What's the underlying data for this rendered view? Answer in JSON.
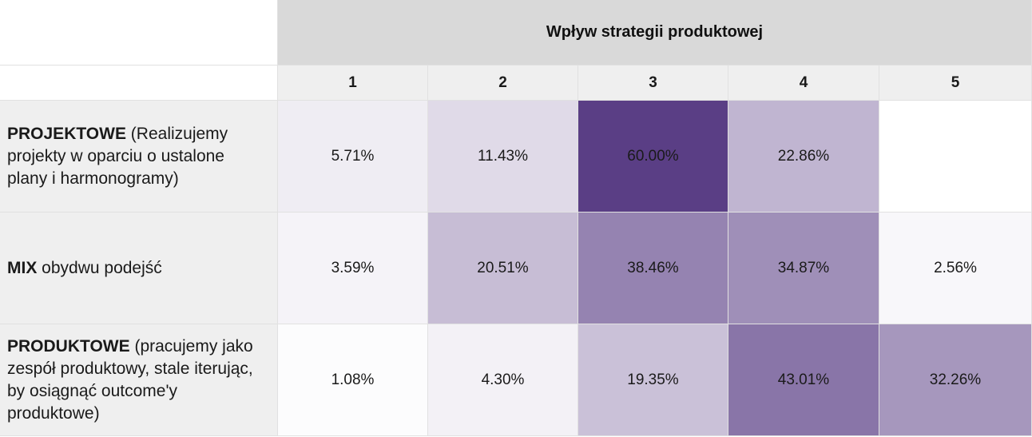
{
  "chart_data": {
    "type": "heatmap",
    "title": "Wpływ strategii produktowej",
    "columns": [
      "1",
      "2",
      "3",
      "4",
      "5"
    ],
    "rows": [
      {
        "label_bold": "PROJEKTOWE",
        "label_rest": " (Realizujemy projekty w oparciu o ustalone plany i harmonogramy)",
        "values": [
          5.71,
          11.43,
          60.0,
          22.86,
          null
        ],
        "display": [
          "5.71%",
          "11.43%",
          "60.00%",
          "22.86%",
          ""
        ]
      },
      {
        "label_bold": "MIX",
        "label_rest": " obydwu podejść",
        "values": [
          3.59,
          20.51,
          38.46,
          34.87,
          2.56
        ],
        "display": [
          "3.59%",
          "20.51%",
          "38.46%",
          "34.87%",
          "2.56%"
        ]
      },
      {
        "label_bold": "PRODUKTOWE",
        "label_rest": " (pracujemy jako zespół produktowy, stale iterując, by osiągnąć outcome'y produktowe)",
        "values": [
          1.08,
          4.3,
          19.35,
          43.01,
          32.26
        ],
        "display": [
          "1.08%",
          "4.30%",
          "19.35%",
          "43.01%",
          "32.26%"
        ]
      }
    ],
    "color_scale": {
      "min_color": "#ffffff",
      "max_color": "#5a3e85"
    }
  }
}
